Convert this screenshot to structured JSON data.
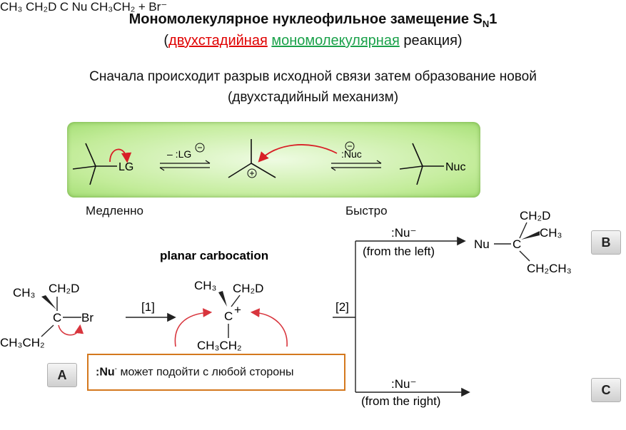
{
  "title": {
    "main": "Мономолекулярное нуклеофильное замещение S",
    "sub": "N",
    "num": "1"
  },
  "subtitle": {
    "open": "(",
    "two_stage": "двухстадийная",
    "mono": "мономолекулярная",
    "rest": " реакция)"
  },
  "description": {
    "line1": "Сначала происходит разрыв  исходной связи затем образование новой",
    "line2": "(двухстадийный механизм)"
  },
  "mechanism": {
    "leaving_group": "LG",
    "minus_lg": "– :LG",
    "nuc": ":Nuc",
    "product_nuc": "Nuc",
    "colors": {
      "box": "#b5e68a",
      "arrow": "#d81f26"
    }
  },
  "speed": {
    "slow": "Медленно",
    "fast": "Быстро"
  },
  "scheme": {
    "planar_label": "planar carbocation",
    "step1": "[1]",
    "step2": "[2]",
    "nu": ":Nu⁻",
    "from_left": "(from the left)",
    "from_right": "(from the right)",
    "plus": "+",
    "br_minus": "Br⁻",
    "badges": {
      "a": "A",
      "b": "B",
      "c": "C"
    },
    "compound_a": {
      "ch3": "CH₃",
      "ch2d": "CH₂D",
      "c": "C",
      "br": "Br",
      "ch3ch2": "CH₃CH₂"
    },
    "cation": {
      "ch3": "CH₃",
      "ch2d": "CH₂D",
      "c": "C",
      "plus": "+",
      "ch3ch2": "CH₃CH₂"
    },
    "product_b": {
      "ch2d": "CH₂D",
      "ch3": "CH₃",
      "nu": "Nu",
      "c": "C",
      "ch2ch3": "CH₂CH₃"
    },
    "product_c": {
      "ch3": "CH₃",
      "ch2d": "CH₂D",
      "c": "C",
      "nu": "Nu",
      "ch3ch2": "CH₃CH₂"
    }
  },
  "callout": {
    "bold": ":Nu",
    "sup": "-",
    "text": " может подойти с любой стороны"
  }
}
